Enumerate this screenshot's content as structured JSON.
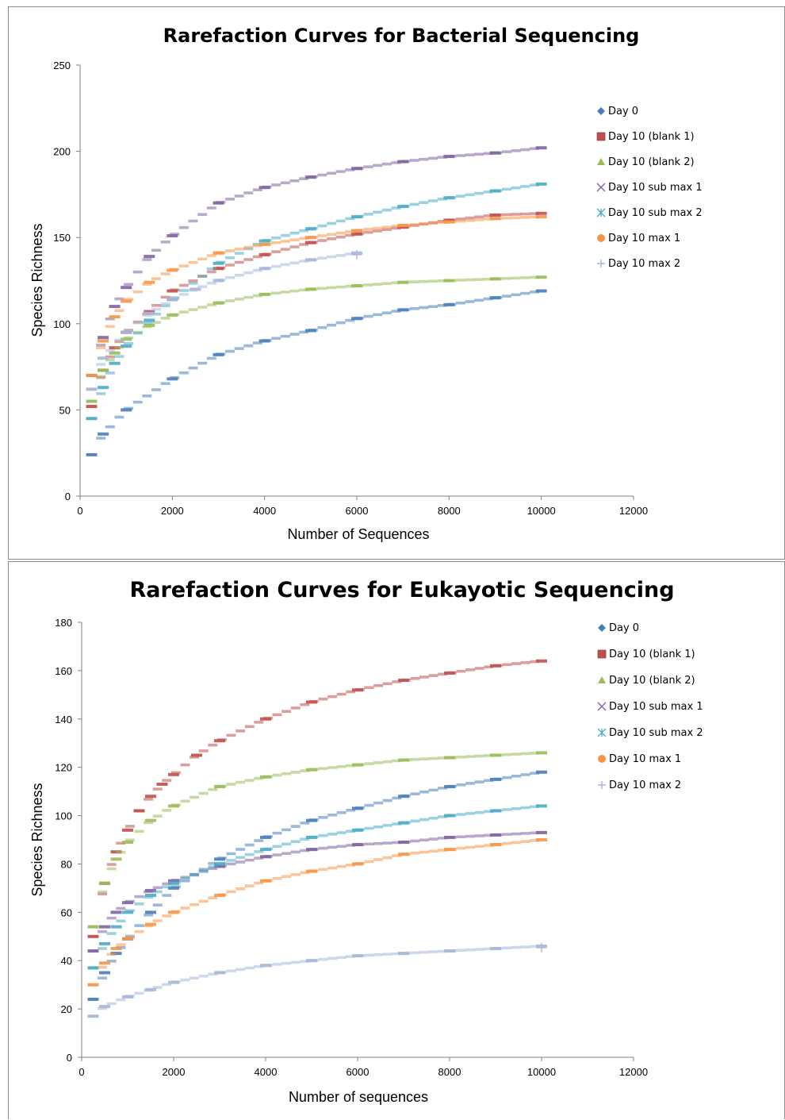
{
  "chart_data": [
    {
      "type": "scatter",
      "title": "Rarefaction Curves for Bacterial Sequencing",
      "xlabel": "Number of Sequences",
      "ylabel": "Species Richness",
      "xlim": [
        0,
        12000
      ],
      "ylim": [
        0,
        250
      ],
      "xticks": [
        "0",
        "2000",
        "4000",
        "6000",
        "8000",
        "10000",
        "12000"
      ],
      "yticks": [
        "0",
        "50",
        "100",
        "150",
        "200",
        "250"
      ],
      "legend_position": "right",
      "series": [
        {
          "name": "Day 0",
          "color": "#4a7ebb",
          "marker": "diamond",
          "xmax": 10000,
          "x": [
            250,
            500,
            1000,
            2000,
            3000,
            4000,
            5000,
            6000,
            7000,
            8000,
            9000,
            10000
          ],
          "y": [
            24,
            36,
            50,
            68,
            82,
            90,
            96,
            103,
            108,
            111,
            115,
            119
          ]
        },
        {
          "name": "Day 10 (blank 1)",
          "color": "#c0504d",
          "marker": "square",
          "xmax": 10000,
          "x": [
            250,
            500,
            750,
            1000,
            1500,
            2000,
            3000,
            4000,
            5000,
            6000,
            7000,
            8000,
            9000,
            10000
          ],
          "y": [
            52,
            73,
            86,
            95,
            107,
            119,
            132,
            140,
            147,
            152,
            156,
            160,
            163,
            164
          ]
        },
        {
          "name": "Day 10 (blank 2)",
          "color": "#9bbb59",
          "marker": "triangle",
          "xmax": 10000,
          "x": [
            250,
            500,
            750,
            1000,
            1500,
            2000,
            3000,
            4000,
            5000,
            6000,
            7000,
            8000,
            9000,
            10000
          ],
          "y": [
            55,
            73,
            83,
            91,
            99,
            105,
            112,
            117,
            120,
            122,
            124,
            125,
            126,
            127
          ]
        },
        {
          "name": "Day 10 sub max 1",
          "color": "#8064a2",
          "marker": "x",
          "xmax": 10000,
          "x": [
            250,
            500,
            750,
            1000,
            1500,
            2000,
            3000,
            4000,
            5000,
            6000,
            7000,
            8000,
            9000,
            10000
          ],
          "y": [
            70,
            92,
            110,
            121,
            139,
            151,
            170,
            179,
            185,
            190,
            194,
            197,
            199,
            202
          ]
        },
        {
          "name": "Day 10 sub max 2",
          "color": "#4bacc6",
          "marker": "star",
          "xmax": 10000,
          "x": [
            250,
            500,
            750,
            1000,
            1500,
            2000,
            3000,
            4000,
            5000,
            6000,
            7000,
            8000,
            9000,
            10000
          ],
          "y": [
            45,
            63,
            77,
            87,
            102,
            114,
            135,
            148,
            155,
            162,
            168,
            173,
            177,
            181
          ]
        },
        {
          "name": "Day 10 max 1",
          "color": "#f79646",
          "marker": "circle",
          "xmax": 10000,
          "x": [
            250,
            500,
            750,
            1000,
            1500,
            2000,
            3000,
            4000,
            5000,
            6000,
            7000,
            8000,
            9000,
            10000
          ],
          "y": [
            70,
            90,
            104,
            113,
            124,
            131,
            141,
            146,
            150,
            154,
            157,
            159,
            161,
            162
          ]
        },
        {
          "name": "Day 10 max 2",
          "color": "#a6b8d8",
          "marker": "plus",
          "xmax": 6000,
          "x": [
            250,
            500,
            1000,
            1500,
            2000,
            2500,
            3000,
            4000,
            5000,
            6000
          ],
          "y": [
            62,
            80,
            95,
            106,
            114,
            120,
            125,
            132,
            137,
            141
          ]
        }
      ]
    },
    {
      "type": "scatter",
      "title": "Rarefaction Curves for Eukayotic Sequencing",
      "xlabel": "Number of sequences",
      "ylabel": "Species Richness",
      "xlim": [
        0,
        12000
      ],
      "ylim": [
        0,
        180
      ],
      "xticks": [
        "0",
        "2000",
        "4000",
        "6000",
        "8000",
        "10000",
        "12000"
      ],
      "yticks": [
        "0",
        "20",
        "40",
        "60",
        "80",
        "100",
        "120",
        "140",
        "160",
        "180"
      ],
      "legend_position": "right",
      "series": [
        {
          "name": "Day 0",
          "color": "#4a7ebb",
          "marker": "diamond",
          "xmax": 10000,
          "x": [
            250,
            500,
            750,
            1000,
            1500,
            2000,
            3000,
            4000,
            5000,
            6000,
            7000,
            8000,
            9000,
            10000
          ],
          "y": [
            24,
            35,
            43,
            49,
            60,
            70,
            82,
            91,
            98,
            103,
            108,
            112,
            115,
            118
          ]
        },
        {
          "name": "Day 10 (blank 1)",
          "color": "#c0504d",
          "marker": "square",
          "xmax": 10000,
          "x": [
            250,
            500,
            750,
            1000,
            1250,
            1500,
            1750,
            2000,
            2500,
            3000,
            4000,
            5000,
            6000,
            7000,
            8000,
            9000,
            10000
          ],
          "y": [
            50,
            72,
            85,
            94,
            102,
            108,
            113,
            117,
            125,
            131,
            140,
            147,
            152,
            156,
            159,
            162,
            164
          ]
        },
        {
          "name": "Day 10 (blank 2)",
          "color": "#9bbb59",
          "marker": "triangle",
          "xmax": 10000,
          "x": [
            250,
            500,
            750,
            1000,
            1500,
            2000,
            3000,
            4000,
            5000,
            6000,
            7000,
            8000,
            9000,
            10000
          ],
          "y": [
            54,
            72,
            82,
            89,
            98,
            104,
            112,
            116,
            119,
            121,
            123,
            124,
            125,
            126
          ]
        },
        {
          "name": "Day 10 sub max 1",
          "color": "#8064a2",
          "marker": "x",
          "xmax": 10000,
          "x": [
            250,
            500,
            750,
            1000,
            1500,
            2000,
            3000,
            4000,
            5000,
            6000,
            7000,
            8000,
            9000,
            10000
          ],
          "y": [
            44,
            54,
            60,
            64,
            69,
            73,
            79,
            83,
            86,
            88,
            89,
            91,
            92,
            93
          ]
        },
        {
          "name": "Day 10 sub max 2",
          "color": "#4bacc6",
          "marker": "star",
          "xmax": 10000,
          "x": [
            250,
            500,
            750,
            1000,
            1500,
            2000,
            3000,
            4000,
            5000,
            6000,
            7000,
            8000,
            9000,
            10000
          ],
          "y": [
            37,
            47,
            54,
            60,
            67,
            72,
            80,
            86,
            91,
            94,
            97,
            100,
            102,
            104
          ]
        },
        {
          "name": "Day 10 max 1",
          "color": "#f79646",
          "marker": "circle",
          "xmax": 10000,
          "x": [
            250,
            500,
            750,
            1000,
            1500,
            2000,
            3000,
            4000,
            5000,
            6000,
            7000,
            8000,
            9000,
            10000
          ],
          "y": [
            30,
            39,
            45,
            49,
            55,
            60,
            67,
            73,
            77,
            80,
            84,
            86,
            88,
            90
          ]
        },
        {
          "name": "Day 10 max 2",
          "color": "#a6b8d8",
          "marker": "plus",
          "xmax": 10000,
          "x": [
            250,
            500,
            1000,
            1500,
            2000,
            3000,
            4000,
            5000,
            6000,
            7000,
            8000,
            9000,
            10000
          ],
          "y": [
            17,
            21,
            25,
            28,
            31,
            35,
            38,
            40,
            42,
            43,
            44,
            45,
            46
          ]
        }
      ]
    }
  ]
}
